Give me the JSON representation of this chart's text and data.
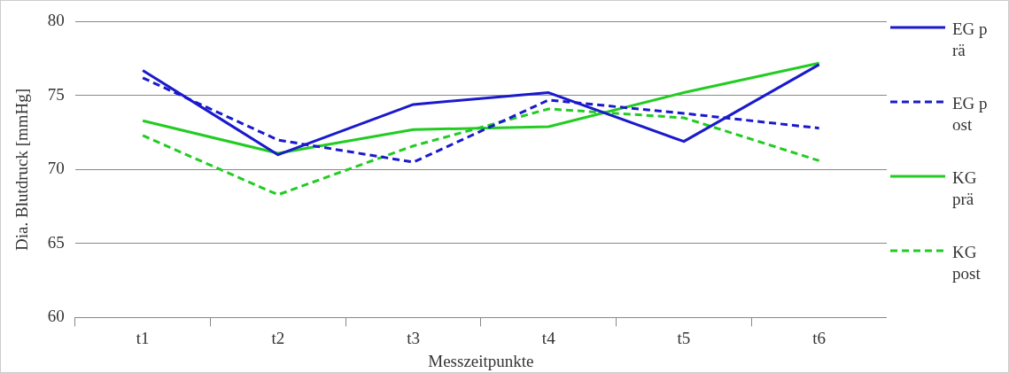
{
  "chart_data": {
    "type": "line",
    "xlabel": "Messzeitpunkte",
    "ylabel": "Dia. Blutdruck [mmHg]",
    "categories": [
      "t1",
      "t2",
      "t3",
      "t4",
      "t5",
      "t6"
    ],
    "ylim": [
      60,
      80
    ],
    "yticks": [
      60,
      65,
      70,
      75,
      80
    ],
    "grid": "y",
    "legend": "right",
    "marker": "none",
    "series": [
      {
        "name": "EG prä",
        "color": "#1a1acc",
        "line_style": "solid",
        "values": [
          76.7,
          71.0,
          74.4,
          75.2,
          71.9,
          77.1
        ]
      },
      {
        "name": "EG post",
        "color": "#1a1acc",
        "line_style": "dashed",
        "values": [
          76.2,
          72.0,
          70.5,
          74.7,
          73.8,
          72.8
        ]
      },
      {
        "name": "KG prä",
        "color": "#22cc22",
        "line_style": "solid",
        "values": [
          73.3,
          71.1,
          72.7,
          72.9,
          75.2,
          77.2
        ]
      },
      {
        "name": "KG post",
        "color": "#22cc22",
        "line_style": "dashed",
        "values": [
          72.3,
          68.3,
          71.6,
          74.1,
          73.5,
          70.6
        ]
      }
    ]
  }
}
